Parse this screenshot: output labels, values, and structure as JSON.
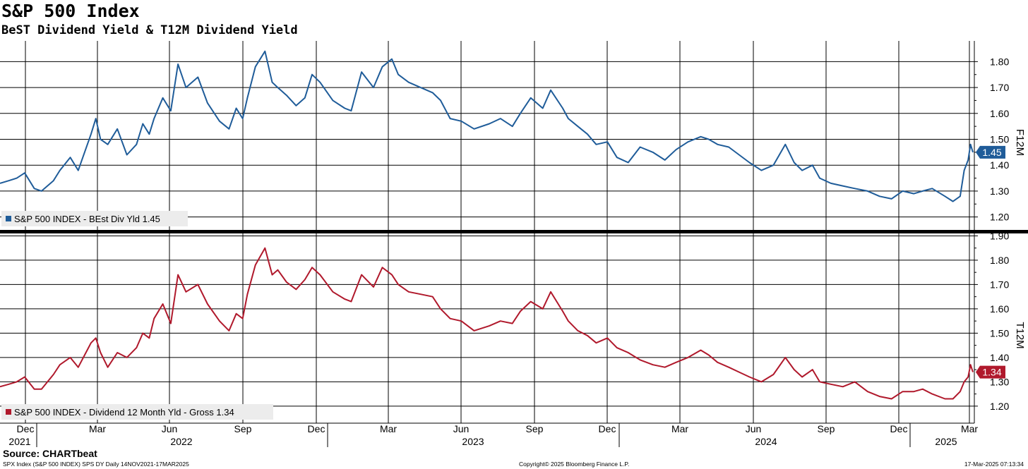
{
  "header": {
    "title": "S&P 500 Index",
    "subtitle": "BeST Dividend Yield & T12M Dividend Yield"
  },
  "chart_data": {
    "type": "line",
    "x_axis": {
      "month_labels": [
        "Dec",
        "Mar",
        "Jun",
        "Sep",
        "Dec",
        "Mar",
        "Jun",
        "Sep",
        "Dec",
        "Mar",
        "Jun",
        "Sep",
        "Dec",
        "Mar"
      ],
      "year_labels": [
        "2021",
        "2022",
        "2023",
        "2024",
        "2025"
      ],
      "range": [
        "2021-11-14",
        "2025-03-17"
      ]
    },
    "panels": [
      {
        "id": "top",
        "ylabel": "F12M",
        "ylim": [
          1.15,
          1.88
        ],
        "yticks": [
          "1.20",
          "1.30",
          "1.40",
          "1.50",
          "1.60",
          "1.70",
          "1.80"
        ],
        "grid": true,
        "legend_placement": "bottom-left",
        "series": [
          {
            "name": "S&P 500 INDEX - BEst Div Yld 1.45",
            "color": "#1f5c99",
            "last_value": "1.45",
            "x": [
              "2021-11-14",
              "2021-11-25",
              "2021-12-05",
              "2021-12-15",
              "2021-12-27",
              "2022-01-05",
              "2022-01-20",
              "2022-01-28",
              "2022-02-10",
              "2022-02-20",
              "2022-03-08",
              "2022-03-14",
              "2022-03-20",
              "2022-03-29",
              "2022-04-10",
              "2022-04-22",
              "2022-05-04",
              "2022-05-12",
              "2022-05-20",
              "2022-05-26",
              "2022-06-06",
              "2022-06-16",
              "2022-06-25",
              "2022-07-05",
              "2022-07-20",
              "2022-08-01",
              "2022-08-16",
              "2022-08-28",
              "2022-09-06",
              "2022-09-14",
              "2022-09-20",
              "2022-09-30",
              "2022-10-12",
              "2022-10-21",
              "2022-10-28",
              "2022-11-08",
              "2022-11-20",
              "2022-12-01",
              "2022-12-10",
              "2022-12-20",
              "2023-01-05",
              "2023-01-20",
              "2023-01-28",
              "2023-02-10",
              "2023-02-25",
              "2023-03-08",
              "2023-03-20",
              "2023-03-28",
              "2023-04-10",
              "2023-04-25",
              "2023-05-10",
              "2023-05-20",
              "2023-06-01",
              "2023-06-15",
              "2023-07-01",
              "2023-07-20",
              "2023-08-03",
              "2023-08-18",
              "2023-08-28",
              "2023-09-10",
              "2023-09-25",
              "2023-10-05",
              "2023-10-20",
              "2023-10-27",
              "2023-11-08",
              "2023-11-20",
              "2023-12-01",
              "2023-12-15",
              "2023-12-27",
              "2024-01-10",
              "2024-01-25",
              "2024-02-10",
              "2024-02-25",
              "2024-03-10",
              "2024-03-25",
              "2024-04-10",
              "2024-04-20",
              "2024-05-01",
              "2024-05-15",
              "2024-05-28",
              "2024-06-10",
              "2024-06-25",
              "2024-07-10",
              "2024-07-25",
              "2024-08-05",
              "2024-08-15",
              "2024-08-28",
              "2024-09-06",
              "2024-09-20",
              "2024-10-05",
              "2024-10-20",
              "2024-11-05",
              "2024-11-20",
              "2024-12-05",
              "2024-12-19",
              "2025-01-02",
              "2025-01-13",
              "2025-01-25",
              "2025-02-10",
              "2025-02-20",
              "2025-03-01",
              "2025-03-06",
              "2025-03-11",
              "2025-03-14",
              "2025-03-17"
            ],
            "y": [
              1.33,
              1.34,
              1.35,
              1.37,
              1.31,
              1.3,
              1.34,
              1.38,
              1.43,
              1.38,
              1.52,
              1.58,
              1.5,
              1.48,
              1.54,
              1.44,
              1.48,
              1.56,
              1.52,
              1.58,
              1.66,
              1.61,
              1.79,
              1.7,
              1.74,
              1.64,
              1.57,
              1.54,
              1.62,
              1.58,
              1.66,
              1.78,
              1.84,
              1.72,
              1.7,
              1.67,
              1.63,
              1.66,
              1.75,
              1.72,
              1.65,
              1.62,
              1.61,
              1.76,
              1.7,
              1.78,
              1.81,
              1.75,
              1.72,
              1.7,
              1.68,
              1.65,
              1.58,
              1.57,
              1.54,
              1.56,
              1.58,
              1.55,
              1.6,
              1.66,
              1.62,
              1.69,
              1.62,
              1.58,
              1.55,
              1.52,
              1.48,
              1.49,
              1.43,
              1.41,
              1.47,
              1.45,
              1.42,
              1.46,
              1.49,
              1.51,
              1.5,
              1.48,
              1.47,
              1.44,
              1.41,
              1.38,
              1.4,
              1.48,
              1.41,
              1.38,
              1.4,
              1.35,
              1.33,
              1.32,
              1.31,
              1.3,
              1.28,
              1.27,
              1.3,
              1.29,
              1.3,
              1.31,
              1.28,
              1.26,
              1.28,
              1.38,
              1.42,
              1.48,
              1.45
            ]
          }
        ]
      },
      {
        "id": "bottom",
        "ylabel": "T12M",
        "ylim": [
          1.13,
          1.91
        ],
        "yticks": [
          "1.20",
          "1.30",
          "1.40",
          "1.50",
          "1.60",
          "1.70",
          "1.80",
          "1.90"
        ],
        "grid": true,
        "legend_placement": "bottom-left",
        "series": [
          {
            "name": "S&P 500 INDEX - Dividend 12 Month Yld - Gross 1.34",
            "color": "#b0192c",
            "last_value": "1.34",
            "x": [
              "2021-11-14",
              "2021-11-25",
              "2021-12-05",
              "2021-12-15",
              "2021-12-27",
              "2022-01-05",
              "2022-01-20",
              "2022-01-28",
              "2022-02-10",
              "2022-02-20",
              "2022-03-08",
              "2022-03-14",
              "2022-03-20",
              "2022-03-29",
              "2022-04-10",
              "2022-04-22",
              "2022-05-04",
              "2022-05-12",
              "2022-05-20",
              "2022-05-26",
              "2022-06-06",
              "2022-06-16",
              "2022-06-25",
              "2022-07-05",
              "2022-07-20",
              "2022-08-01",
              "2022-08-16",
              "2022-08-28",
              "2022-09-06",
              "2022-09-14",
              "2022-09-20",
              "2022-09-30",
              "2022-10-12",
              "2022-10-21",
              "2022-10-28",
              "2022-11-08",
              "2022-11-20",
              "2022-12-01",
              "2022-12-10",
              "2022-12-20",
              "2023-01-05",
              "2023-01-20",
              "2023-01-28",
              "2023-02-10",
              "2023-02-25",
              "2023-03-08",
              "2023-03-20",
              "2023-03-28",
              "2023-04-10",
              "2023-04-25",
              "2023-05-10",
              "2023-05-20",
              "2023-06-01",
              "2023-06-15",
              "2023-07-01",
              "2023-07-20",
              "2023-08-03",
              "2023-08-18",
              "2023-08-28",
              "2023-09-10",
              "2023-09-25",
              "2023-10-05",
              "2023-10-20",
              "2023-10-27",
              "2023-11-08",
              "2023-11-20",
              "2023-12-01",
              "2023-12-15",
              "2023-12-27",
              "2024-01-10",
              "2024-01-25",
              "2024-02-10",
              "2024-02-25",
              "2024-03-10",
              "2024-03-25",
              "2024-04-10",
              "2024-04-20",
              "2024-05-01",
              "2024-05-15",
              "2024-05-28",
              "2024-06-10",
              "2024-06-25",
              "2024-07-10",
              "2024-07-25",
              "2024-08-05",
              "2024-08-15",
              "2024-08-28",
              "2024-09-06",
              "2024-09-20",
              "2024-10-05",
              "2024-10-20",
              "2024-11-05",
              "2024-11-20",
              "2024-12-05",
              "2024-12-19",
              "2025-01-02",
              "2025-01-13",
              "2025-01-25",
              "2025-02-10",
              "2025-02-20",
              "2025-03-01",
              "2025-03-06",
              "2025-03-11",
              "2025-03-14",
              "2025-03-17"
            ],
            "y": [
              1.28,
              1.29,
              1.3,
              1.32,
              1.27,
              1.27,
              1.33,
              1.37,
              1.4,
              1.36,
              1.46,
              1.48,
              1.42,
              1.36,
              1.42,
              1.4,
              1.44,
              1.5,
              1.48,
              1.56,
              1.62,
              1.54,
              1.74,
              1.67,
              1.7,
              1.62,
              1.55,
              1.51,
              1.58,
              1.56,
              1.66,
              1.78,
              1.85,
              1.74,
              1.76,
              1.71,
              1.68,
              1.72,
              1.77,
              1.74,
              1.67,
              1.64,
              1.63,
              1.74,
              1.69,
              1.77,
              1.74,
              1.7,
              1.67,
              1.66,
              1.65,
              1.6,
              1.56,
              1.55,
              1.51,
              1.53,
              1.55,
              1.54,
              1.59,
              1.63,
              1.6,
              1.67,
              1.59,
              1.55,
              1.51,
              1.49,
              1.46,
              1.48,
              1.44,
              1.42,
              1.39,
              1.37,
              1.36,
              1.38,
              1.4,
              1.43,
              1.41,
              1.38,
              1.36,
              1.34,
              1.32,
              1.3,
              1.33,
              1.4,
              1.35,
              1.32,
              1.35,
              1.3,
              1.29,
              1.28,
              1.3,
              1.26,
              1.24,
              1.23,
              1.26,
              1.26,
              1.27,
              1.25,
              1.23,
              1.23,
              1.26,
              1.3,
              1.32,
              1.37,
              1.34
            ]
          }
        ]
      }
    ]
  },
  "footer": {
    "source": "Source: CHARTbeat",
    "left": "SPX Index (S&P 500 INDEX) SPS DY  Daily 14NOV2021-17MAR2025",
    "center": "Copyright© 2025 Bloomberg Finance L.P.",
    "right": "17-Mar-2025 07:13:34"
  }
}
